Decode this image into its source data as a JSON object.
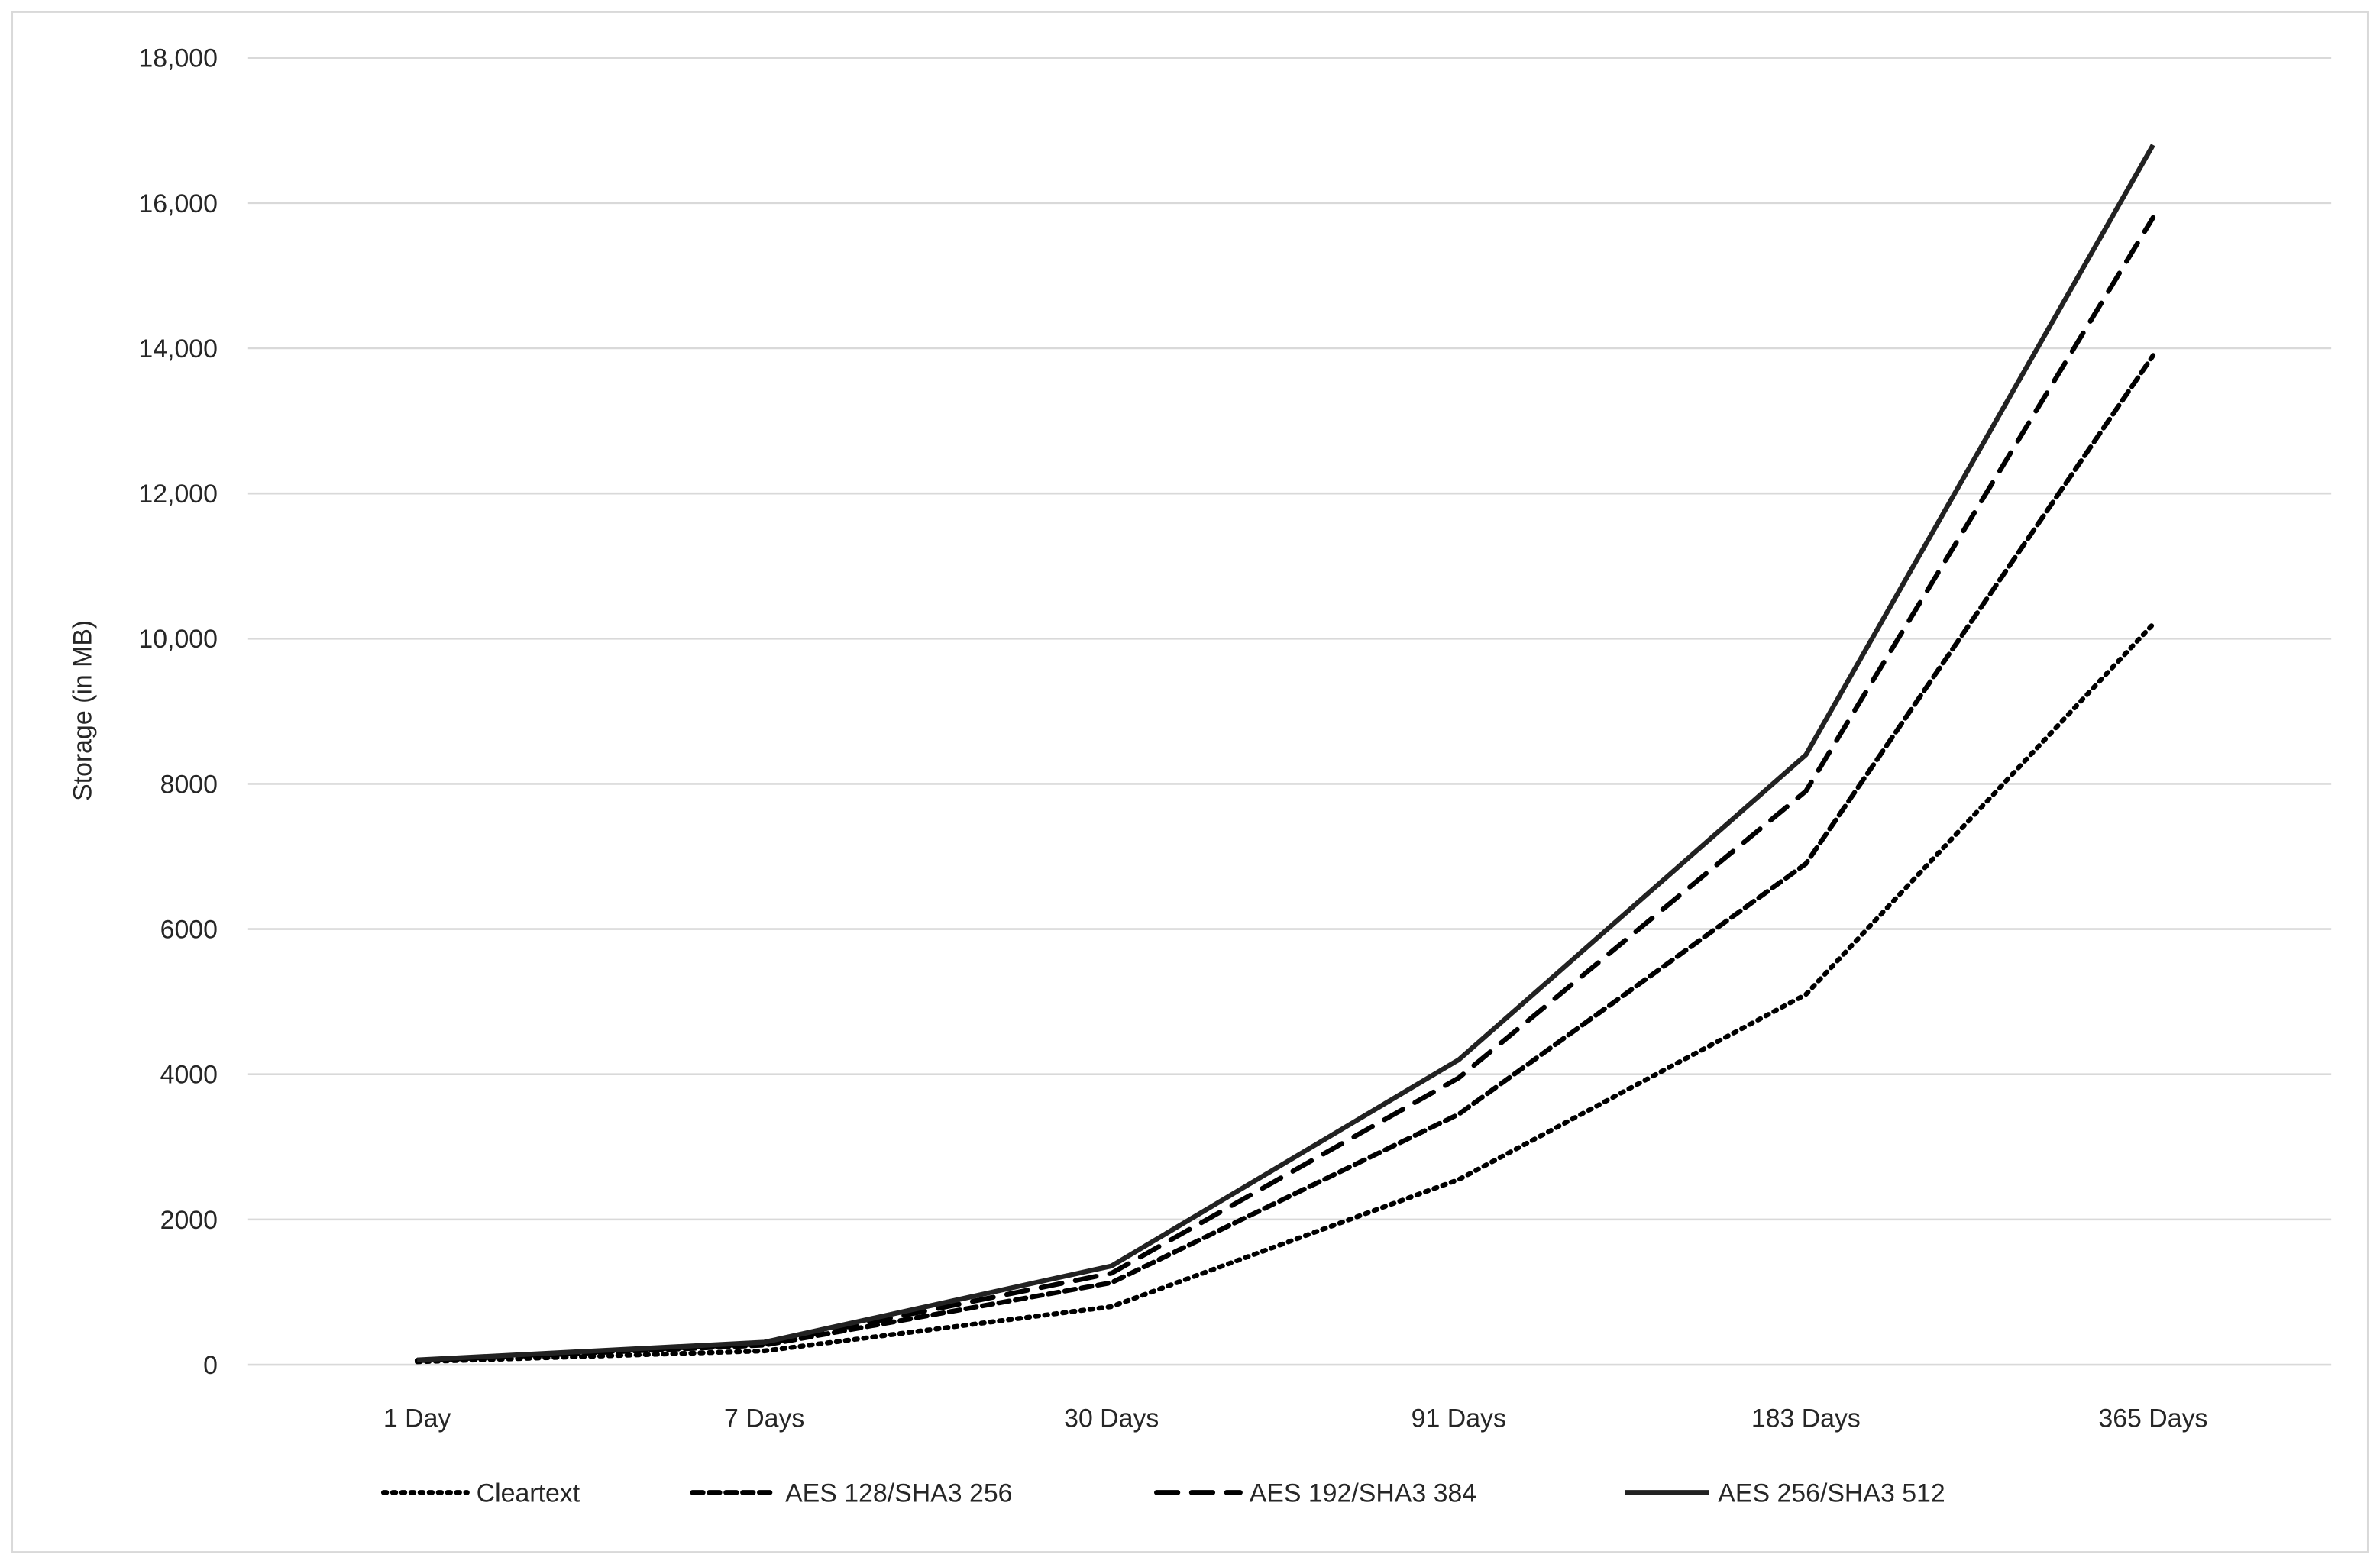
{
  "chart_data": {
    "type": "line",
    "title": "",
    "xlabel": "",
    "ylabel": "Storage (in MB)",
    "categories": [
      "1 Day",
      "7 Days",
      "30 Days",
      "91 Days",
      "183 Days",
      "365 Days"
    ],
    "ylim": [
      0,
      18000
    ],
    "yticks": [
      0,
      2000,
      4000,
      6000,
      8000,
      10000,
      12000,
      14000,
      16000,
      18000
    ],
    "ytick_labels": [
      "0",
      "2000",
      "4000",
      "6000",
      "8000",
      "10,000",
      "12,000",
      "14,000",
      "16,000",
      "18,000"
    ],
    "grid": "horizontal",
    "legend_position": "bottom",
    "series": [
      {
        "name": "Cleartext",
        "style": "dotted",
        "color": "#000000",
        "values": [
          40,
          190,
          800,
          2550,
          5100,
          10200
        ]
      },
      {
        "name": "AES 128/SHA3 256",
        "style": "short-dash",
        "color": "#000000",
        "values": [
          55,
          270,
          1130,
          3450,
          6900,
          13900
        ]
      },
      {
        "name": "AES 192/SHA3 384",
        "style": "long-dash",
        "color": "#000000",
        "values": [
          60,
          290,
          1260,
          3950,
          7900,
          15800
        ]
      },
      {
        "name": "AES 256/SHA3 512",
        "style": "solid",
        "color": "#222222",
        "values": [
          65,
          310,
          1360,
          4200,
          8400,
          16800
        ]
      }
    ]
  }
}
